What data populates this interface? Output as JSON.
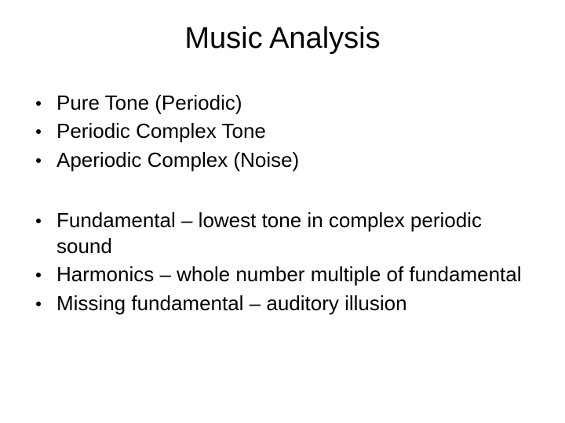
{
  "slide": {
    "title": "Music Analysis",
    "group1": {
      "items": [
        {
          "text": "Pure Tone (Periodic)"
        },
        {
          "text": "Periodic Complex Tone"
        },
        {
          "text": "Aperiodic Complex (Noise)"
        }
      ]
    },
    "group2": {
      "items": [
        {
          "text": "Fundamental – lowest tone in complex periodic sound"
        },
        {
          "text": "Harmonics – whole number multiple of fundamental"
        },
        {
          "text": "Missing fundamental – auditory illusion"
        }
      ]
    },
    "style": {
      "background_color": "#ffffff",
      "text_color": "#000000",
      "title_fontsize": 38,
      "body_fontsize": 26,
      "font_family": "Arial"
    }
  }
}
